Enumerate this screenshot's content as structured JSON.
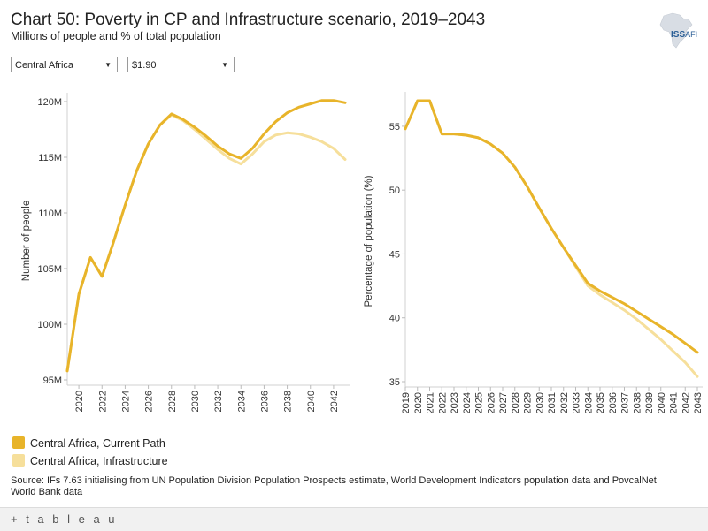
{
  "header": {
    "title": "Chart 50: Poverty in CP and Infrastructure scenario, 2019–2043",
    "subtitle": "Millions of people and % of total population"
  },
  "logo": {
    "text_bold": "ISS",
    "text_light": "AFI"
  },
  "filters": {
    "region": {
      "value": "Central Africa"
    },
    "threshold": {
      "value": "$1.90"
    }
  },
  "legend": [
    {
      "label": "Central Africa, Current Path",
      "color": "#e8b42a"
    },
    {
      "label": "Central Africa, Infrastructure",
      "color": "#f6df9b"
    }
  ],
  "source": "Source: IFs 7.63 initialising from UN Population Division Population Prospects estimate, World Development Indicators population data and PovcalNet World Bank data",
  "footer": {
    "brand": "+ t a b l e a u"
  },
  "chart_data": [
    {
      "type": "line",
      "ylabel": "Number of people",
      "xlabel": "",
      "xlim": [
        2019,
        2043
      ],
      "ylim": [
        95,
        120
      ],
      "x_ticks": [
        2020,
        2022,
        2024,
        2026,
        2028,
        2030,
        2032,
        2034,
        2036,
        2038,
        2040,
        2042
      ],
      "y_ticks": [
        95,
        100,
        105,
        110,
        115,
        120
      ],
      "y_tick_labels": [
        "95M",
        "100M",
        "105M",
        "110M",
        "115M",
        "120M"
      ],
      "x": [
        2019,
        2020,
        2021,
        2022,
        2023,
        2024,
        2025,
        2026,
        2027,
        2028,
        2029,
        2030,
        2031,
        2032,
        2033,
        2034,
        2035,
        2036,
        2037,
        2038,
        2039,
        2040,
        2041,
        2042,
        2043
      ],
      "series": [
        {
          "name": "Central Africa, Current Path",
          "color": "#e8b42a",
          "values": [
            95.8,
            102.7,
            106.0,
            104.3,
            107.4,
            110.7,
            113.8,
            116.2,
            117.9,
            118.9,
            118.4,
            117.7,
            116.9,
            116.0,
            115.3,
            114.9,
            115.8,
            117.1,
            118.2,
            119.0,
            119.5,
            119.8,
            120.1,
            120.1,
            119.9
          ]
        },
        {
          "name": "Central Africa, Infrastructure",
          "color": "#f6df9b",
          "values": [
            95.8,
            102.7,
            106.0,
            104.3,
            107.4,
            110.7,
            113.8,
            116.2,
            117.9,
            118.8,
            118.3,
            117.5,
            116.6,
            115.7,
            114.9,
            114.4,
            115.3,
            116.4,
            117.0,
            117.2,
            117.1,
            116.8,
            116.4,
            115.8,
            114.8
          ]
        }
      ]
    },
    {
      "type": "line",
      "ylabel": "Percentage of population (%)",
      "xlabel": "",
      "xlim": [
        2019,
        2043
      ],
      "ylim": [
        35,
        57
      ],
      "x_ticks": [
        2019,
        2020,
        2021,
        2022,
        2023,
        2024,
        2025,
        2026,
        2027,
        2028,
        2029,
        2030,
        2031,
        2032,
        2033,
        2034,
        2035,
        2036,
        2037,
        2038,
        2039,
        2040,
        2041,
        2042,
        2043
      ],
      "y_ticks": [
        35,
        40,
        45,
        50,
        55
      ],
      "y_tick_labels": [
        "35",
        "40",
        "45",
        "50",
        "55"
      ],
      "x": [
        2019,
        2020,
        2021,
        2022,
        2023,
        2024,
        2025,
        2026,
        2027,
        2028,
        2029,
        2030,
        2031,
        2032,
        2033,
        2034,
        2035,
        2036,
        2037,
        2038,
        2039,
        2040,
        2041,
        2042,
        2043
      ],
      "series": [
        {
          "name": "Central Africa, Current Path",
          "color": "#e8b42a",
          "values": [
            54.8,
            57.0,
            57.0,
            54.4,
            54.4,
            54.3,
            54.1,
            53.6,
            52.9,
            51.8,
            50.3,
            48.6,
            47.0,
            45.5,
            44.1,
            42.7,
            42.1,
            41.6,
            41.1,
            40.5,
            39.9,
            39.3,
            38.7,
            38.0,
            37.3
          ]
        },
        {
          "name": "Central Africa, Infrastructure",
          "color": "#f6df9b",
          "values": [
            54.8,
            57.0,
            57.0,
            54.4,
            54.4,
            54.3,
            54.1,
            53.6,
            52.9,
            51.8,
            50.3,
            48.6,
            47.0,
            45.5,
            44.0,
            42.5,
            41.8,
            41.2,
            40.6,
            39.9,
            39.1,
            38.3,
            37.4,
            36.5,
            35.4
          ]
        }
      ]
    }
  ]
}
